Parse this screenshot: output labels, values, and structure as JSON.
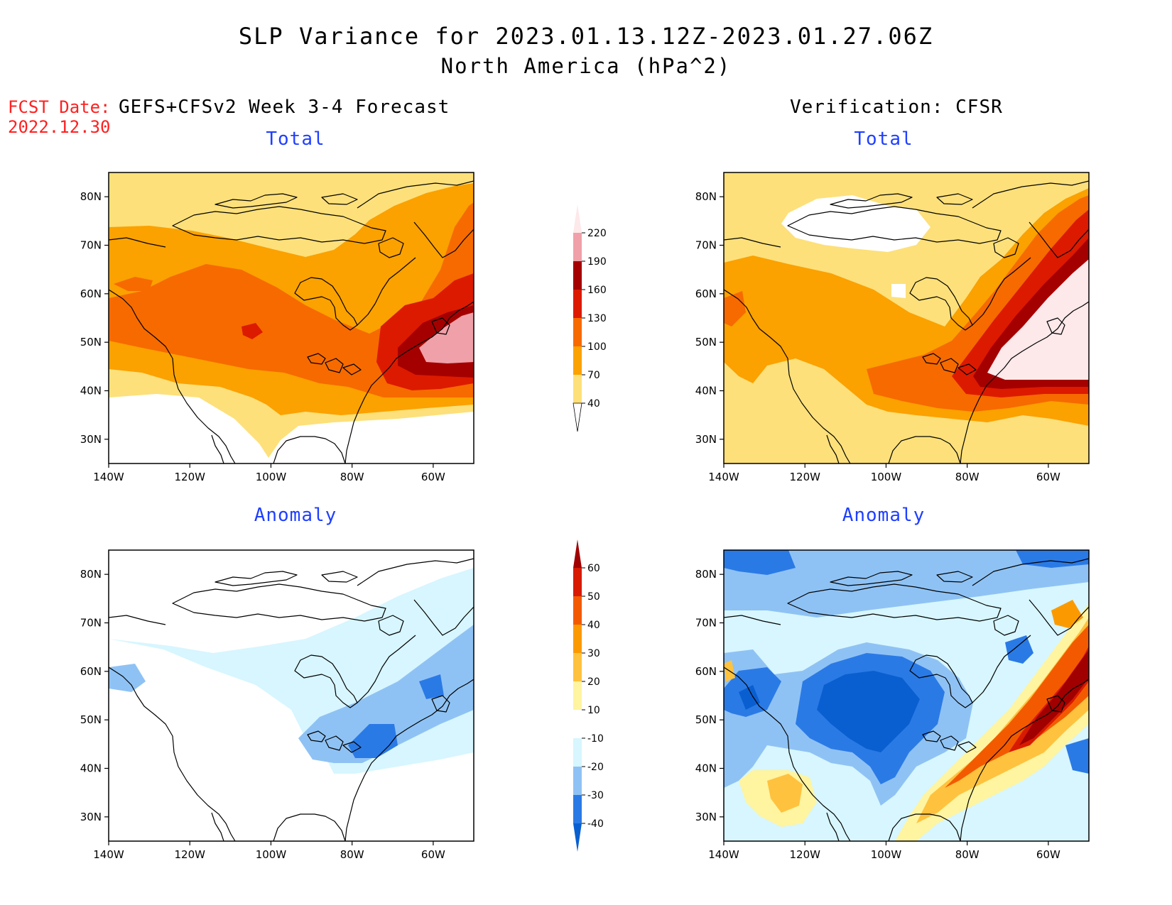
{
  "header": {
    "title": "SLP Variance for 2023.01.13.12Z-2023.01.27.06Z",
    "subtitle": "North America (hPa^2)",
    "fcst_label": "FCST Date:",
    "fcst_date": "2022.12.30",
    "left_column_title": "GEFS+CFSv2 Week 3-4 Forecast",
    "right_column_title": "Verification: CFSR"
  },
  "panels": [
    {
      "id": "fcst-total",
      "title": "Total"
    },
    {
      "id": "verif-total",
      "title": "Total"
    },
    {
      "id": "fcst-anomaly",
      "title": "Anomaly"
    },
    {
      "id": "verif-anomaly",
      "title": "Anomaly"
    }
  ],
  "axes": {
    "lon_ticks": [
      "140W",
      "120W",
      "100W",
      "80W",
      "60W"
    ],
    "lat_ticks": [
      "80N",
      "70N",
      "60N",
      "50N",
      "40N",
      "30N"
    ]
  },
  "colorbar_total": {
    "levels": [
      "40",
      "70",
      "100",
      "130",
      "160",
      "190",
      "220"
    ],
    "colors": [
      "#ffffff",
      "#fde07a",
      "#fba100",
      "#f66a00",
      "#dc1a00",
      "#a50000",
      "#f0a0a8",
      "#fde8ea"
    ]
  },
  "colorbar_anomaly": {
    "levels": [
      "-40",
      "-30",
      "-20",
      "-10",
      "10",
      "20",
      "30",
      "40",
      "50",
      "60"
    ],
    "colors": [
      "#0a5fd0",
      "#2a7ae6",
      "#8fc2f4",
      "#d7f6ff",
      "#ffffff",
      "#fff4a0",
      "#ffc23e",
      "#fb9a00",
      "#f35a00",
      "#d71a00",
      "#a00000"
    ]
  },
  "chart_data": [
    {
      "type": "heatmap",
      "title": "Total",
      "series_group": "GEFS+CFSv2 Week 3-4 Forecast",
      "lon_range": [
        -140,
        -50
      ],
      "lat_range": [
        25,
        85
      ],
      "units": "hPa^2",
      "notes": "Max variance (>190) over Gulf of St. Lawrence / Maritimes; 100-130 band across central Canada and N. Atlantic; <40 over SW US."
    },
    {
      "type": "heatmap",
      "title": "Total",
      "series_group": "Verification: CFSR",
      "lon_range": [
        -140,
        -50
      ],
      "lat_range": [
        25,
        85
      ],
      "units": "hPa^2",
      "notes": "Max variance (>220) over Maritimes/Newfoundland; 160-190 ring; <40 over Canadian Arctic Archipelago."
    },
    {
      "type": "heatmap",
      "title": "Anomaly",
      "series_group": "GEFS+CFSv2 Week 3-4 Forecast",
      "lon_range": [
        -140,
        -50
      ],
      "lat_range": [
        25,
        85
      ],
      "units": "hPa^2",
      "notes": "Mostly -10 to -20 over N. America; -30 to -40 over Great Lakes / New England."
    },
    {
      "type": "heatmap",
      "title": "Anomaly",
      "series_group": "Verification: CFSR",
      "lon_range": [
        -140,
        -50
      ],
      "lat_range": [
        25,
        85
      ],
      "units": "hPa^2",
      "notes": "Strong negative (-30 to -40) over central Canada/US and Pacific NW; strong positive (50 to 60) from Great Lakes to Maritimes and Labrador Sea; +20 to +30 over SW US."
    }
  ]
}
